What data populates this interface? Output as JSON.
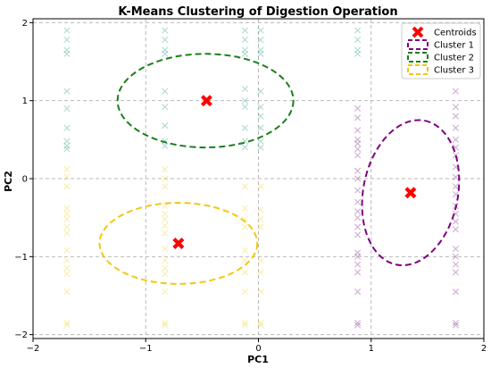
{
  "chart_data": {
    "type": "scatter",
    "title": "K-Means Clustering of Digestion Operation",
    "xlabel": "PC1",
    "ylabel": "PC2",
    "xlim": [
      -2,
      2
    ],
    "ylim": [
      -2.05,
      2.05
    ],
    "xticks": [
      -2,
      -1,
      0,
      1,
      2
    ],
    "yticks": [
      -2,
      -1,
      0,
      1,
      2
    ],
    "xtick_labels": [
      "−2",
      "−1",
      "0",
      "1",
      "2"
    ],
    "ytick_labels": [
      "−2",
      "−1",
      "0",
      "1",
      "2"
    ],
    "grid": true,
    "legend_position": "top-right",
    "legend": [
      "Centroids",
      "Cluster 1",
      "Cluster 2",
      "Cluster 3"
    ],
    "colors": {
      "cluster1": "#7b2a85",
      "cluster2": "#2a9d8f",
      "cluster3": "#f0d02a",
      "centroid": "#ff0000",
      "ellipse1": "#800080",
      "ellipse2": "#1a7f1a",
      "ellipse3": "#f2c80f"
    },
    "series": [
      {
        "name": "Cluster 1",
        "points": [
          [
            0.88,
            0.9
          ],
          [
            0.88,
            0.78
          ],
          [
            0.88,
            0.62
          ],
          [
            0.88,
            0.5
          ],
          [
            0.88,
            0.45
          ],
          [
            0.88,
            0.38
          ],
          [
            0.88,
            0.3
          ],
          [
            0.88,
            0.1
          ],
          [
            0.88,
            0.0
          ],
          [
            0.88,
            -0.15
          ],
          [
            0.88,
            -0.3
          ],
          [
            0.88,
            -0.42
          ],
          [
            0.88,
            -0.5
          ],
          [
            0.88,
            -0.62
          ],
          [
            0.88,
            -0.72
          ],
          [
            0.88,
            -0.95
          ],
          [
            0.88,
            -1.0
          ],
          [
            0.88,
            -1.1
          ],
          [
            0.88,
            -1.2
          ],
          [
            0.88,
            -1.45
          ],
          [
            0.88,
            -1.85
          ],
          [
            0.88,
            -1.88
          ],
          [
            1.75,
            1.12
          ],
          [
            1.75,
            0.92
          ],
          [
            1.75,
            0.8
          ],
          [
            1.75,
            0.65
          ],
          [
            1.75,
            0.5
          ],
          [
            1.75,
            0.4
          ],
          [
            1.75,
            0.3
          ],
          [
            1.75,
            0.15
          ],
          [
            1.75,
            0.02
          ],
          [
            1.75,
            -0.1
          ],
          [
            1.75,
            -0.2
          ],
          [
            1.75,
            -0.35
          ],
          [
            1.75,
            -0.45
          ],
          [
            1.75,
            -0.55
          ],
          [
            1.75,
            -0.65
          ],
          [
            1.75,
            -0.9
          ],
          [
            1.75,
            -1.0
          ],
          [
            1.75,
            -1.1
          ],
          [
            1.75,
            -1.2
          ],
          [
            1.75,
            -1.45
          ],
          [
            1.75,
            -1.85
          ],
          [
            1.75,
            -1.88
          ]
        ]
      },
      {
        "name": "Cluster 2",
        "points": [
          [
            -1.7,
            1.9
          ],
          [
            -1.7,
            1.78
          ],
          [
            -1.7,
            1.65
          ],
          [
            -1.7,
            1.6
          ],
          [
            -1.7,
            1.12
          ],
          [
            -1.7,
            0.9
          ],
          [
            -1.7,
            0.65
          ],
          [
            -1.7,
            0.48
          ],
          [
            -1.7,
            0.42
          ],
          [
            -1.7,
            0.38
          ],
          [
            -0.83,
            1.9
          ],
          [
            -0.83,
            1.78
          ],
          [
            -0.83,
            1.65
          ],
          [
            -0.83,
            1.6
          ],
          [
            -0.83,
            1.12
          ],
          [
            -0.83,
            0.92
          ],
          [
            -0.83,
            0.68
          ],
          [
            -0.83,
            0.48
          ],
          [
            -0.83,
            0.42
          ],
          [
            -0.12,
            1.9
          ],
          [
            -0.12,
            1.78
          ],
          [
            -0.12,
            1.65
          ],
          [
            -0.12,
            1.6
          ],
          [
            -0.12,
            1.15
          ],
          [
            -0.12,
            1.0
          ],
          [
            -0.12,
            0.92
          ],
          [
            -0.12,
            0.65
          ],
          [
            -0.12,
            0.48
          ],
          [
            -0.12,
            0.4
          ],
          [
            0.02,
            1.9
          ],
          [
            0.02,
            1.78
          ],
          [
            0.02,
            1.65
          ],
          [
            0.02,
            1.6
          ],
          [
            0.02,
            1.12
          ],
          [
            0.02,
            0.92
          ],
          [
            0.02,
            0.8
          ],
          [
            0.02,
            0.65
          ],
          [
            0.02,
            0.48
          ],
          [
            0.02,
            0.4
          ],
          [
            0.88,
            1.9
          ],
          [
            0.88,
            1.78
          ],
          [
            0.88,
            1.65
          ],
          [
            0.88,
            1.6
          ]
        ]
      },
      {
        "name": "Cluster 3",
        "points": [
          [
            -1.7,
            0.12
          ],
          [
            -1.7,
            0.02
          ],
          [
            -1.7,
            -0.1
          ],
          [
            -1.7,
            -0.38
          ],
          [
            -1.7,
            -0.45
          ],
          [
            -1.7,
            -0.52
          ],
          [
            -1.7,
            -0.62
          ],
          [
            -1.7,
            -0.7
          ],
          [
            -1.7,
            -0.92
          ],
          [
            -1.7,
            -1.05
          ],
          [
            -1.7,
            -1.15
          ],
          [
            -1.7,
            -1.22
          ],
          [
            -1.7,
            -1.45
          ],
          [
            -1.7,
            -1.85
          ],
          [
            -1.7,
            -1.88
          ],
          [
            -0.83,
            0.12
          ],
          [
            -0.83,
            0.0
          ],
          [
            -0.83,
            -0.1
          ],
          [
            -0.83,
            -0.35
          ],
          [
            -0.83,
            -0.45
          ],
          [
            -0.83,
            -0.52
          ],
          [
            -0.83,
            -0.6
          ],
          [
            -0.83,
            -0.7
          ],
          [
            -0.83,
            -0.9
          ],
          [
            -0.83,
            -1.05
          ],
          [
            -0.83,
            -1.15
          ],
          [
            -0.83,
            -1.22
          ],
          [
            -0.83,
            -1.45
          ],
          [
            -0.83,
            -1.85
          ],
          [
            -0.83,
            -1.88
          ],
          [
            -0.12,
            -0.1
          ],
          [
            -0.12,
            -0.38
          ],
          [
            -0.12,
            -0.52
          ],
          [
            -0.12,
            -0.62
          ],
          [
            -0.12,
            -0.92
          ],
          [
            -0.12,
            -1.05
          ],
          [
            -0.12,
            -1.2
          ],
          [
            -0.12,
            -1.45
          ],
          [
            -0.12,
            -1.85
          ],
          [
            -0.12,
            -1.88
          ],
          [
            0.02,
            -0.1
          ],
          [
            0.02,
            -0.4
          ],
          [
            0.02,
            -0.52
          ],
          [
            0.02,
            -0.62
          ],
          [
            0.02,
            -1.05
          ],
          [
            0.02,
            -1.2
          ],
          [
            0.02,
            -1.45
          ],
          [
            0.02,
            -1.85
          ],
          [
            0.02,
            -1.88
          ]
        ]
      }
    ],
    "centroids": [
      [
        1.35,
        -0.18
      ],
      [
        -0.46,
        1.0
      ],
      [
        -0.71,
        -0.83
      ]
    ],
    "ellipses": [
      {
        "cluster": "Cluster 1",
        "cx": 1.35,
        "cy": -0.18,
        "rx": 0.96,
        "ry": 0.42,
        "angle_deg": 79
      },
      {
        "cluster": "Cluster 2",
        "cx": -0.47,
        "cy": 1.0,
        "rx": 0.78,
        "ry": 0.6,
        "angle_deg": 0
      },
      {
        "cluster": "Cluster 3",
        "cx": -0.71,
        "cy": -0.83,
        "rx": 0.7,
        "ry": 0.52,
        "angle_deg": 0
      }
    ]
  }
}
